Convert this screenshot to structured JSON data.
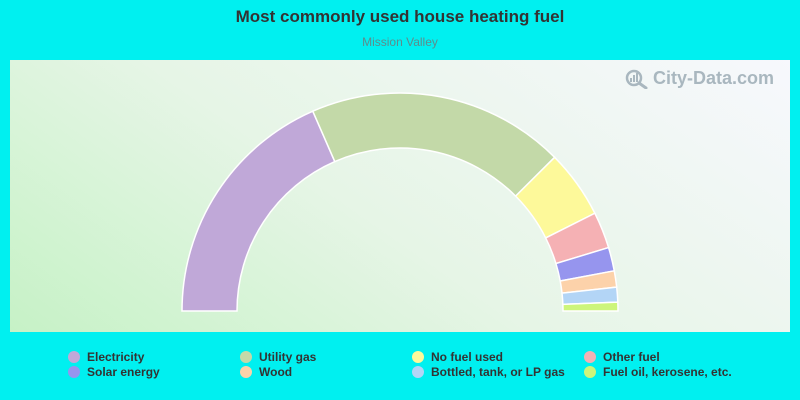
{
  "chart_data": {
    "type": "pie",
    "shape": "semi-donut",
    "title": "Most commonly used house heating fuel",
    "subtitle": "Mission Valley",
    "legend_position": "bottom",
    "categories": [
      "Electricity",
      "Utility gas",
      "No fuel used",
      "Other fuel",
      "Solar energy",
      "Wood",
      "Bottled, tank, or LP gas",
      "Fuel oil, kerosene, etc."
    ],
    "values": [
      36.9,
      38.2,
      10.1,
      5.4,
      3.5,
      2.4,
      2.2,
      1.3
    ],
    "colors": [
      "#c0a8d8",
      "#c3d9a8",
      "#fdf99a",
      "#f5b1b4",
      "#9695ee",
      "#fcd2aa",
      "#b3d5f6",
      "#cdf57b"
    ]
  },
  "watermark": {
    "text": "City-Data.com"
  }
}
